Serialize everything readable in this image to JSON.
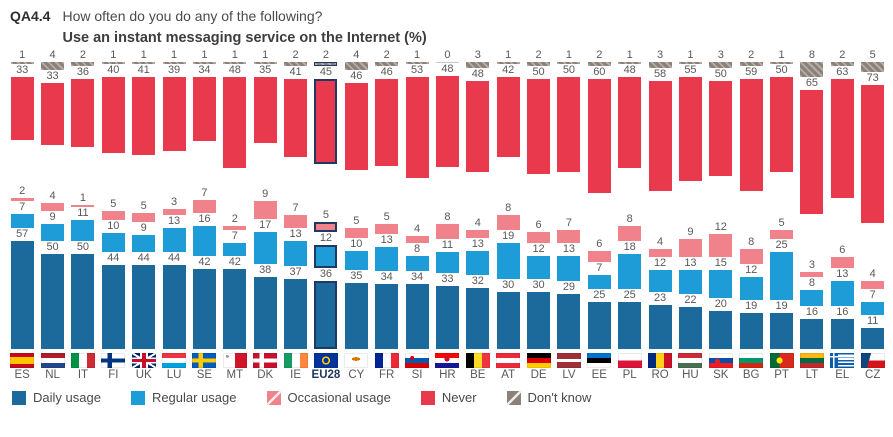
{
  "header": {
    "code": "QA4.4",
    "question": "How often do you do any of the following?",
    "subtitle": "Use an instant messaging service on the Internet (%)"
  },
  "colors": {
    "daily": "#1B6A9B",
    "regular": "#1E9CD7",
    "occasional": "#F0828C",
    "never": "#E83A4C",
    "dont_know": "#8C8178",
    "highlight_outline": "#1F3864",
    "value_text": "#595959"
  },
  "legend": [
    {
      "key": "daily",
      "label": "Daily usage",
      "color": "#1B6A9B",
      "hatched": false
    },
    {
      "key": "regular",
      "label": "Regular usage",
      "color": "#1E9CD7",
      "hatched": false
    },
    {
      "key": "occasional",
      "label": "Occasional usage",
      "color": "#F0828C",
      "hatched": true
    },
    {
      "key": "never",
      "label": "Never",
      "color": "#E83A4C",
      "hatched": false
    },
    {
      "key": "dont_know",
      "label": "Don't know",
      "color": "#8C8178",
      "hatched": true
    }
  ],
  "chart_data": {
    "type": "bar",
    "stacked": true,
    "unit": "%",
    "title": "Use an instant messaging service on the Internet (%)",
    "categories": [
      "ES",
      "NL",
      "IT",
      "FI",
      "UK",
      "LU",
      "SE",
      "MT",
      "DK",
      "IE",
      "EU28",
      "CY",
      "FR",
      "SI",
      "HR",
      "BE",
      "AT",
      "DE",
      "LV",
      "EE",
      "PL",
      "RO",
      "HU",
      "SK",
      "BG",
      "PT",
      "LT",
      "EL",
      "CZ"
    ],
    "highlight_category": "EU28",
    "series": [
      {
        "name": "Daily usage",
        "key": "daily",
        "values": [
          57,
          50,
          50,
          44,
          44,
          44,
          42,
          42,
          38,
          37,
          36,
          35,
          34,
          34,
          33,
          32,
          30,
          30,
          29,
          25,
          25,
          23,
          22,
          20,
          19,
          19,
          16,
          16,
          11
        ]
      },
      {
        "name": "Regular usage",
        "key": "regular",
        "values": [
          7,
          9,
          11,
          10,
          9,
          13,
          16,
          7,
          17,
          13,
          12,
          10,
          13,
          8,
          11,
          13,
          19,
          12,
          13,
          7,
          18,
          12,
          13,
          15,
          12,
          25,
          8,
          13,
          7
        ]
      },
      {
        "name": "Occasional usage",
        "key": "occasional",
        "values": [
          2,
          4,
          1,
          5,
          5,
          3,
          7,
          2,
          9,
          7,
          5,
          5,
          5,
          4,
          8,
          4,
          8,
          6,
          7,
          6,
          8,
          4,
          9,
          12,
          8,
          5,
          3,
          6,
          4
        ]
      },
      {
        "name": "Never",
        "key": "never",
        "values": [
          33,
          33,
          36,
          40,
          41,
          39,
          34,
          48,
          35,
          41,
          45,
          46,
          46,
          53,
          48,
          48,
          42,
          50,
          50,
          60,
          48,
          58,
          55,
          50,
          59,
          50,
          65,
          63,
          73
        ]
      },
      {
        "name": "Don't know",
        "key": "dont_know",
        "values": [
          1,
          4,
          2,
          1,
          1,
          1,
          1,
          1,
          1,
          2,
          2,
          4,
          2,
          1,
          0,
          3,
          1,
          2,
          1,
          2,
          1,
          3,
          1,
          3,
          2,
          1,
          8,
          2,
          5
        ]
      }
    ]
  }
}
